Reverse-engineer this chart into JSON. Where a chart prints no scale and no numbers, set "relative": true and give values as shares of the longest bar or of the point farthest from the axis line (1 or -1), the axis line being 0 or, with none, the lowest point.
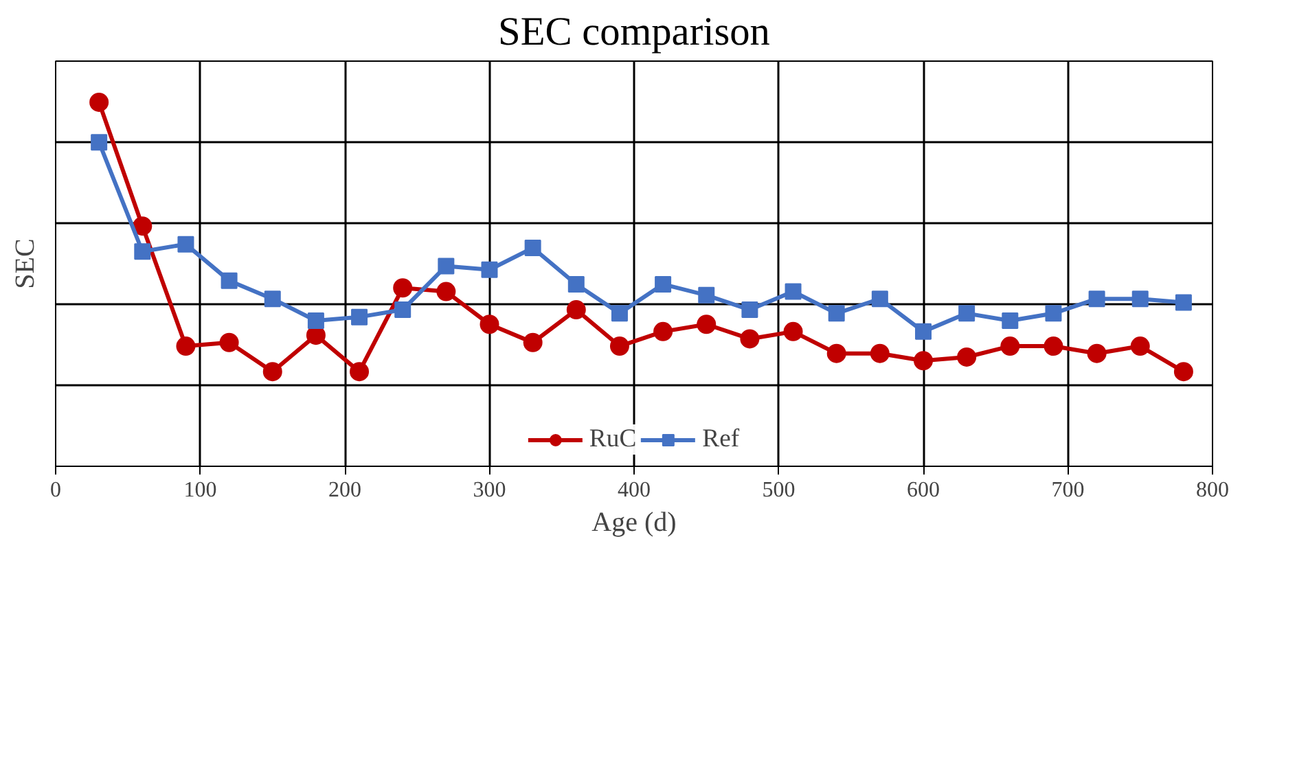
{
  "chart_data": {
    "type": "line",
    "title": "SEC comparison",
    "xlabel": "Age (d)",
    "ylabel": "SEC",
    "relative": true,
    "xlim": [
      0,
      800
    ],
    "xticks": [
      0,
      100,
      200,
      300,
      400,
      500,
      600,
      700,
      800
    ],
    "grid": true,
    "legend": "bottom",
    "tick_labels": "x",
    "line_style": "solid",
    "x": [
      30,
      60,
      90,
      120,
      150,
      180,
      210,
      240,
      270,
      300,
      330,
      360,
      390,
      420,
      450,
      480,
      510,
      540,
      570,
      600,
      630,
      660,
      690,
      720,
      750,
      780
    ],
    "series": [
      {
        "name": "RuC",
        "color": "#c00000",
        "marker": "circle",
        "values": [
          1.0,
          0.66,
          0.33,
          0.34,
          0.26,
          0.36,
          0.26,
          0.49,
          0.48,
          0.39,
          0.34,
          0.43,
          0.33,
          0.37,
          0.39,
          0.35,
          0.37,
          0.31,
          0.31,
          0.29,
          0.3,
          0.33,
          0.33,
          0.31,
          0.33,
          0.26
        ]
      },
      {
        "name": "Ref",
        "color": "#4472c4",
        "marker": "square",
        "values": [
          0.89,
          0.59,
          0.61,
          0.51,
          0.46,
          0.4,
          0.41,
          0.43,
          0.55,
          0.54,
          0.6,
          0.5,
          0.42,
          0.5,
          0.47,
          0.43,
          0.48,
          0.42,
          0.46,
          0.37,
          0.42,
          0.4,
          0.42,
          0.46,
          0.46,
          0.45
        ]
      }
    ]
  }
}
